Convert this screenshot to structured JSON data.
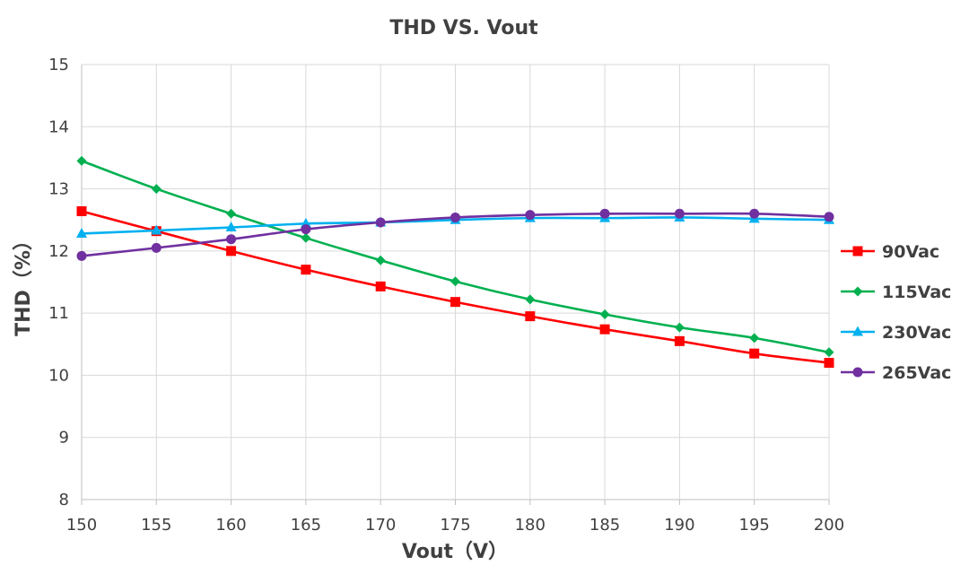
{
  "chart_data": {
    "type": "line",
    "title": "THD VS. Vout",
    "xlabel": "Vout（V）",
    "ylabel": "THD（%）",
    "x": [
      150,
      155,
      160,
      165,
      170,
      175,
      180,
      185,
      190,
      195,
      200
    ],
    "xlim": [
      150,
      200
    ],
    "ylim": [
      8,
      15
    ],
    "x_ticks": [
      "150",
      "155",
      "160",
      "165",
      "170",
      "175",
      "180",
      "185",
      "190",
      "195",
      "200"
    ],
    "y_ticks": [
      "8",
      "9",
      "10",
      "11",
      "12",
      "13",
      "14",
      "15"
    ],
    "grid": true,
    "legend_position": "right",
    "series": [
      {
        "name": "90Vac",
        "color": "#ff0000",
        "marker": "square",
        "values": [
          12.64,
          12.32,
          12.0,
          11.7,
          11.43,
          11.18,
          10.95,
          10.74,
          10.55,
          10.35,
          10.2
        ]
      },
      {
        "name": "115Vac",
        "color": "#00b050",
        "marker": "diamond",
        "values": [
          13.45,
          13.0,
          12.6,
          12.21,
          11.85,
          11.51,
          11.22,
          10.98,
          10.77,
          10.6,
          10.37
        ]
      },
      {
        "name": "230Vac",
        "color": "#00b0f0",
        "marker": "triangle",
        "values": [
          12.28,
          12.33,
          12.38,
          12.44,
          12.46,
          12.5,
          12.53,
          12.53,
          12.54,
          12.52,
          12.5
        ]
      },
      {
        "name": "265Vac",
        "color": "#7030a0",
        "marker": "circle",
        "values": [
          11.92,
          12.05,
          12.19,
          12.35,
          12.46,
          12.54,
          12.58,
          12.6,
          12.6,
          12.6,
          12.55
        ]
      }
    ]
  }
}
